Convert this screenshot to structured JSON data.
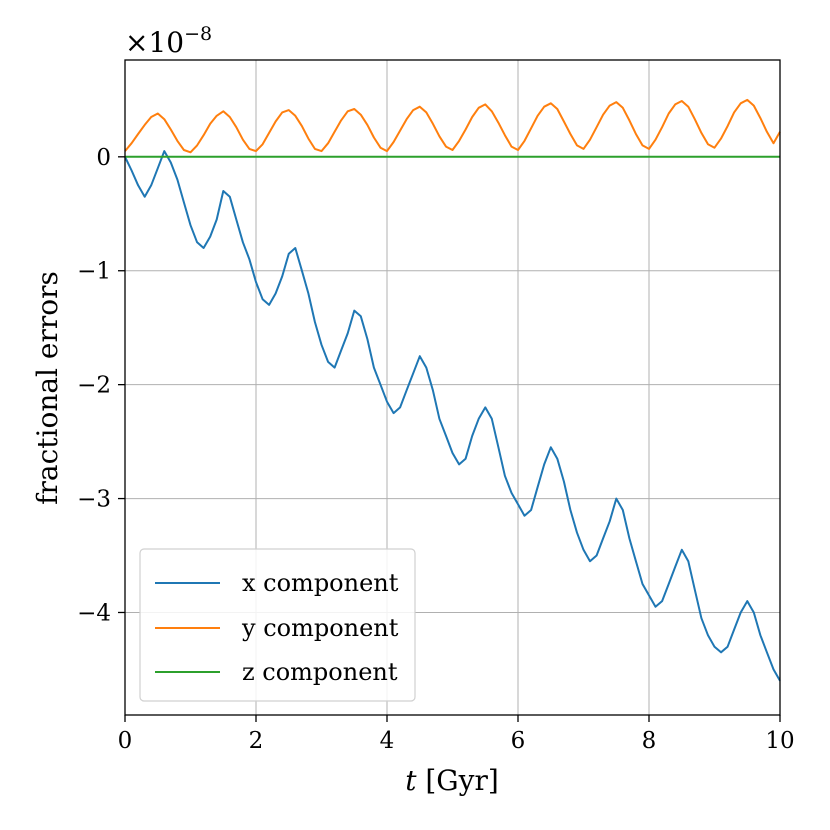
{
  "chart_data": {
    "type": "line",
    "title": "",
    "xlabel_var": "t",
    "xlabel_unit": " [Gyr]",
    "ylabel": "fractional errors",
    "offset_text": "×10",
    "offset_exp": "−8",
    "xlim": [
      0,
      10
    ],
    "ylim": [
      -4.9,
      0.85
    ],
    "xticks": [
      0,
      2,
      4,
      6,
      8,
      10
    ],
    "xtick_labels": [
      "0",
      "2",
      "4",
      "6",
      "8",
      "10"
    ],
    "yticks": [
      0,
      -1,
      -2,
      -3,
      -4
    ],
    "ytick_labels": [
      "0",
      "−1",
      "−2",
      "−3",
      "−4"
    ],
    "grid": true,
    "legend_position": "lower-left",
    "series": [
      {
        "name": "x component",
        "color": "#1f77b4",
        "x": [
          0,
          0.1,
          0.2,
          0.3,
          0.4,
          0.5,
          0.6,
          0.7,
          0.8,
          0.9,
          1.0,
          1.1,
          1.2,
          1.3,
          1.4,
          1.5,
          1.6,
          1.7,
          1.8,
          1.9,
          2.0,
          2.1,
          2.2,
          2.3,
          2.4,
          2.5,
          2.6,
          2.7,
          2.8,
          2.9,
          3.0,
          3.1,
          3.2,
          3.3,
          3.4,
          3.5,
          3.6,
          3.7,
          3.8,
          3.9,
          4.0,
          4.1,
          4.2,
          4.3,
          4.4,
          4.5,
          4.6,
          4.7,
          4.8,
          4.9,
          5.0,
          5.1,
          5.2,
          5.3,
          5.4,
          5.5,
          5.6,
          5.7,
          5.8,
          5.9,
          6.0,
          6.1,
          6.2,
          6.3,
          6.4,
          6.5,
          6.6,
          6.7,
          6.8,
          6.9,
          7.0,
          7.1,
          7.2,
          7.3,
          7.4,
          7.5,
          7.6,
          7.7,
          7.8,
          7.9,
          8.0,
          8.1,
          8.2,
          8.3,
          8.4,
          8.5,
          8.6,
          8.7,
          8.8,
          8.9,
          9.0,
          9.1,
          9.2,
          9.3,
          9.4,
          9.5,
          9.6,
          9.7,
          9.8,
          9.9,
          10.0
        ],
        "y": [
          0.0,
          -0.12,
          -0.25,
          -0.35,
          -0.25,
          -0.1,
          0.05,
          -0.05,
          -0.2,
          -0.4,
          -0.6,
          -0.75,
          -0.8,
          -0.7,
          -0.55,
          -0.3,
          -0.35,
          -0.55,
          -0.75,
          -0.9,
          -1.1,
          -1.25,
          -1.3,
          -1.2,
          -1.05,
          -0.85,
          -0.8,
          -1.0,
          -1.2,
          -1.45,
          -1.65,
          -1.8,
          -1.85,
          -1.7,
          -1.55,
          -1.35,
          -1.4,
          -1.6,
          -1.85,
          -2.0,
          -2.15,
          -2.25,
          -2.2,
          -2.05,
          -1.9,
          -1.75,
          -1.85,
          -2.05,
          -2.3,
          -2.45,
          -2.6,
          -2.7,
          -2.65,
          -2.45,
          -2.3,
          -2.2,
          -2.3,
          -2.55,
          -2.8,
          -2.95,
          -3.05,
          -3.15,
          -3.1,
          -2.9,
          -2.7,
          -2.55,
          -2.65,
          -2.85,
          -3.1,
          -3.3,
          -3.45,
          -3.55,
          -3.5,
          -3.35,
          -3.2,
          -3.0,
          -3.1,
          -3.35,
          -3.55,
          -3.75,
          -3.85,
          -3.95,
          -3.9,
          -3.75,
          -3.6,
          -3.45,
          -3.55,
          -3.8,
          -4.05,
          -4.2,
          -4.3,
          -4.35,
          -4.3,
          -4.15,
          -4.0,
          -3.9,
          -4.0,
          -4.2,
          -4.35,
          -4.5,
          -4.6
        ]
      },
      {
        "name": "y component",
        "color": "#ff7f0e",
        "x": [
          0,
          0.1,
          0.2,
          0.3,
          0.4,
          0.5,
          0.6,
          0.7,
          0.8,
          0.9,
          1.0,
          1.1,
          1.2,
          1.3,
          1.4,
          1.5,
          1.6,
          1.7,
          1.8,
          1.9,
          2.0,
          2.1,
          2.2,
          2.3,
          2.4,
          2.5,
          2.6,
          2.7,
          2.8,
          2.9,
          3.0,
          3.1,
          3.2,
          3.3,
          3.4,
          3.5,
          3.6,
          3.7,
          3.8,
          3.9,
          4.0,
          4.1,
          4.2,
          4.3,
          4.4,
          4.5,
          4.6,
          4.7,
          4.8,
          4.9,
          5.0,
          5.1,
          5.2,
          5.3,
          5.4,
          5.5,
          5.6,
          5.7,
          5.8,
          5.9,
          6.0,
          6.1,
          6.2,
          6.3,
          6.4,
          6.5,
          6.6,
          6.7,
          6.8,
          6.9,
          7.0,
          7.1,
          7.2,
          7.3,
          7.4,
          7.5,
          7.6,
          7.7,
          7.8,
          7.9,
          8.0,
          8.1,
          8.2,
          8.3,
          8.4,
          8.5,
          8.6,
          8.7,
          8.8,
          8.9,
          9.0,
          9.1,
          9.2,
          9.3,
          9.4,
          9.5,
          9.6,
          9.7,
          9.8,
          9.9,
          10.0
        ],
        "y": [
          0.05,
          0.12,
          0.2,
          0.28,
          0.35,
          0.38,
          0.33,
          0.24,
          0.14,
          0.06,
          0.04,
          0.1,
          0.19,
          0.29,
          0.36,
          0.4,
          0.35,
          0.26,
          0.15,
          0.07,
          0.05,
          0.11,
          0.21,
          0.31,
          0.39,
          0.41,
          0.36,
          0.27,
          0.16,
          0.07,
          0.05,
          0.12,
          0.22,
          0.32,
          0.4,
          0.42,
          0.37,
          0.28,
          0.17,
          0.08,
          0.05,
          0.13,
          0.23,
          0.33,
          0.41,
          0.44,
          0.39,
          0.29,
          0.18,
          0.09,
          0.06,
          0.14,
          0.24,
          0.35,
          0.43,
          0.46,
          0.4,
          0.3,
          0.19,
          0.09,
          0.06,
          0.14,
          0.25,
          0.36,
          0.44,
          0.47,
          0.42,
          0.31,
          0.2,
          0.1,
          0.07,
          0.15,
          0.26,
          0.37,
          0.45,
          0.48,
          0.43,
          0.32,
          0.2,
          0.1,
          0.07,
          0.15,
          0.26,
          0.38,
          0.46,
          0.49,
          0.44,
          0.33,
          0.21,
          0.11,
          0.08,
          0.16,
          0.27,
          0.39,
          0.47,
          0.5,
          0.45,
          0.34,
          0.22,
          0.12,
          0.22
        ]
      },
      {
        "name": "z component",
        "color": "#2ca02c",
        "x": [
          0,
          10
        ],
        "y": [
          0,
          0
        ]
      }
    ]
  }
}
